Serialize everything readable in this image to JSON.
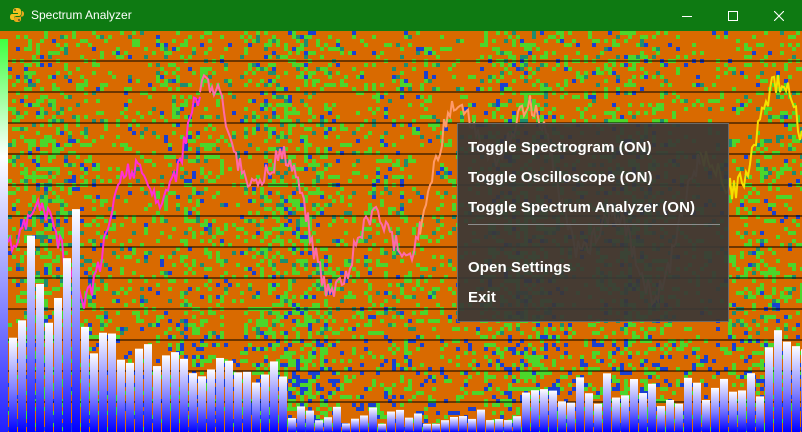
{
  "window": {
    "title": "Spectrum Analyzer",
    "icon": "python-snake-icon",
    "titlebar_color": "#0e7a12"
  },
  "window_controls": {
    "minimize": "minimize-icon",
    "maximize": "maximize-icon",
    "close": "close-icon"
  },
  "visualization": {
    "spectrogram_background": "#d96a00",
    "spectrogram_highlight_colors": [
      "#4cd62a",
      "#1f8c6e",
      "#1a3fd0"
    ],
    "oscilloscope_colors": [
      "#ff2fd6",
      "#ff6aa8",
      "#ff9a6a",
      "#f5e000"
    ],
    "spectrum_bar_gradient": [
      "#ffffff",
      "#0000ff"
    ]
  },
  "context_menu": {
    "items": [
      {
        "label": "Toggle Spectrogram (ON)"
      },
      {
        "label": "Toggle Oscilloscope (ON)"
      },
      {
        "label": "Toggle Spectrum Analyzer (ON)"
      },
      {
        "label": "Open Settings"
      },
      {
        "label": "Exit"
      }
    ]
  }
}
